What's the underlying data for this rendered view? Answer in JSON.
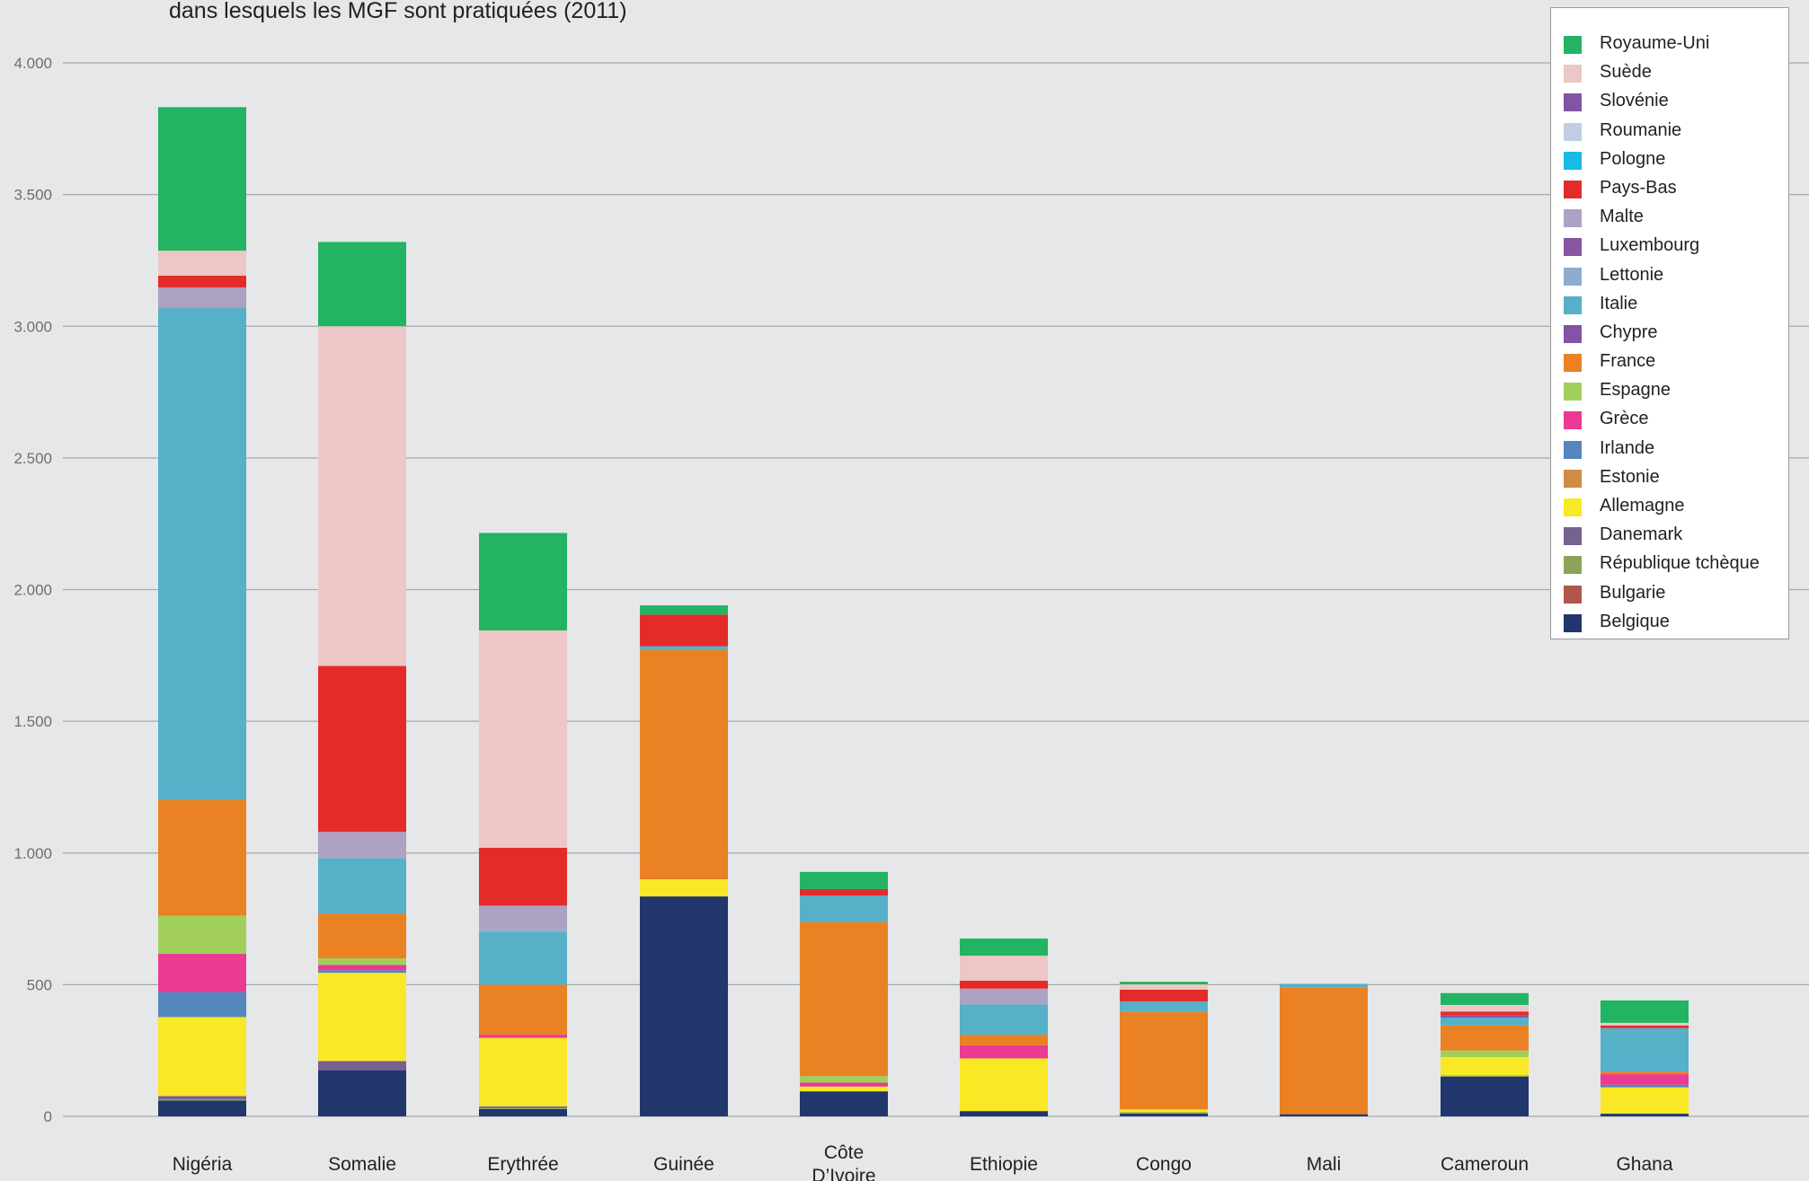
{
  "subtitle": "dans lesquels les MGF sont pratiquées (2011)",
  "chart_data": {
    "type": "bar",
    "stacked": true,
    "categories": [
      "Nigéria",
      "Somalie",
      "Erythrée",
      "Guinée",
      "Côte D’Ivoire",
      "Ethiopie",
      "Congo",
      "Mali",
      "Cameroun",
      "Ghana"
    ],
    "category_lines": [
      [
        "Nigéria"
      ],
      [
        "Somalie"
      ],
      [
        "Erythrée"
      ],
      [
        "Guinée"
      ],
      [
        "Côte",
        "D’Ivoire"
      ],
      [
        "Ethiopie"
      ],
      [
        "Congo"
      ],
      [
        "Mali"
      ],
      [
        "Cameroun"
      ],
      [
        "Ghana"
      ]
    ],
    "ylim": [
      0,
      4000
    ],
    "yticks": [
      0,
      500,
      1000,
      1500,
      2000,
      2500,
      3000,
      3500,
      4000
    ],
    "ytick_labels": [
      "0",
      "500",
      "1.000",
      "1.500",
      "2.000",
      "2.500",
      "3.000",
      "3.500",
      "4.000"
    ],
    "grid": true,
    "legend_position": "top-right",
    "series": [
      {
        "name": "Belgique",
        "color": "#21366d",
        "values": [
          60,
          175,
          28,
          835,
          95,
          20,
          10,
          8,
          150,
          10
        ]
      },
      {
        "name": "Bulgarie",
        "color": "#b0574c",
        "values": [
          0,
          0,
          0,
          0,
          0,
          0,
          0,
          0,
          0,
          0
        ]
      },
      {
        "name": "République tchèque",
        "color": "#8ea35a",
        "values": [
          5,
          0,
          4,
          0,
          0,
          0,
          6,
          0,
          5,
          0
        ]
      },
      {
        "name": "Danemark",
        "color": "#76628f",
        "values": [
          12,
          35,
          6,
          0,
          0,
          0,
          0,
          0,
          0,
          0
        ]
      },
      {
        "name": "Allemagne",
        "color": "#f9e825",
        "values": [
          300,
          335,
          260,
          65,
          18,
          200,
          10,
          0,
          70,
          100
        ]
      },
      {
        "name": "Estonie",
        "color": "#d08b45",
        "values": [
          0,
          0,
          0,
          0,
          0,
          0,
          0,
          0,
          0,
          0
        ]
      },
      {
        "name": "Irlande",
        "color": "#5387be",
        "values": [
          95,
          10,
          0,
          0,
          0,
          0,
          0,
          0,
          0,
          10
        ]
      },
      {
        "name": "Grèce",
        "color": "#ea3a92",
        "values": [
          145,
          20,
          12,
          0,
          15,
          50,
          0,
          0,
          0,
          40
        ]
      },
      {
        "name": "Espagne",
        "color": "#a2cf5c",
        "values": [
          145,
          25,
          0,
          0,
          25,
          0,
          0,
          0,
          25,
          0
        ]
      },
      {
        "name": "France",
        "color": "#ea8123",
        "values": [
          440,
          170,
          190,
          870,
          585,
          40,
          370,
          480,
          95,
          10
        ]
      },
      {
        "name": "Chypre",
        "color": "#8353a5",
        "values": [
          0,
          0,
          0,
          0,
          0,
          0,
          0,
          0,
          0,
          0
        ]
      },
      {
        "name": "Italie",
        "color": "#56b0c8",
        "values": [
          1870,
          210,
          200,
          15,
          100,
          115,
          40,
          15,
          30,
          165
        ]
      },
      {
        "name": "Lettonie",
        "color": "#8facd0",
        "values": [
          0,
          0,
          10,
          0,
          0,
          0,
          0,
          0,
          0,
          0
        ]
      },
      {
        "name": "Luxembourg",
        "color": "#8a55a4",
        "values": [
          0,
          0,
          0,
          0,
          0,
          0,
          0,
          0,
          8,
          0
        ]
      },
      {
        "name": "Malte",
        "color": "#ada1c4",
        "values": [
          75,
          100,
          90,
          0,
          0,
          60,
          0,
          0,
          0,
          0
        ]
      },
      {
        "name": "Pays-Bas",
        "color": "#e32c2a",
        "values": [
          45,
          630,
          220,
          120,
          25,
          30,
          45,
          0,
          15,
          10
        ]
      },
      {
        "name": "Pologne",
        "color": "#19b9e8",
        "values": [
          0,
          0,
          0,
          0,
          0,
          0,
          0,
          0,
          0,
          0
        ]
      },
      {
        "name": "Roumanie",
        "color": "#c0cde4",
        "values": [
          0,
          0,
          0,
          0,
          0,
          0,
          0,
          0,
          0,
          0
        ]
      },
      {
        "name": "Slovénie",
        "color": "#8353a5",
        "values": [
          0,
          0,
          0,
          0,
          0,
          0,
          0,
          0,
          0,
          0
        ]
      },
      {
        "name": "Suède",
        "color": "#ecc7c5",
        "values": [
          95,
          1290,
          825,
          0,
          0,
          95,
          20,
          0,
          25,
          10
        ]
      },
      {
        "name": "Royaume-Uni",
        "color": "#22b463",
        "values": [
          545,
          320,
          370,
          35,
          65,
          65,
          10,
          0,
          45,
          85
        ]
      }
    ]
  }
}
